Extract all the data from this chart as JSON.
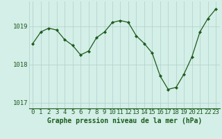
{
  "title": "Graphe pression niveau de la mer (hPa)",
  "x_values": [
    0,
    1,
    2,
    3,
    4,
    5,
    6,
    7,
    8,
    9,
    10,
    11,
    12,
    13,
    14,
    15,
    16,
    17,
    18,
    19,
    20,
    21,
    22,
    23
  ],
  "y_values": [
    1018.55,
    1018.85,
    1018.95,
    1018.9,
    1018.65,
    1018.5,
    1018.25,
    1018.35,
    1018.7,
    1018.85,
    1019.1,
    1019.15,
    1019.1,
    1018.75,
    1018.55,
    1018.3,
    1017.7,
    1017.35,
    1017.4,
    1017.75,
    1018.2,
    1018.85,
    1019.2,
    1019.45
  ],
  "line_color": "#1a5c1a",
  "marker_color": "#1a5c1a",
  "bg_color": "#d4eee8",
  "grid_color": "#b0cfc8",
  "yticks": [
    1017,
    1018,
    1019
  ],
  "ylim": [
    1016.85,
    1019.65
  ],
  "xlim": [
    -0.5,
    23.5
  ],
  "tick_fontsize": 6.5,
  "title_fontsize": 7.0
}
